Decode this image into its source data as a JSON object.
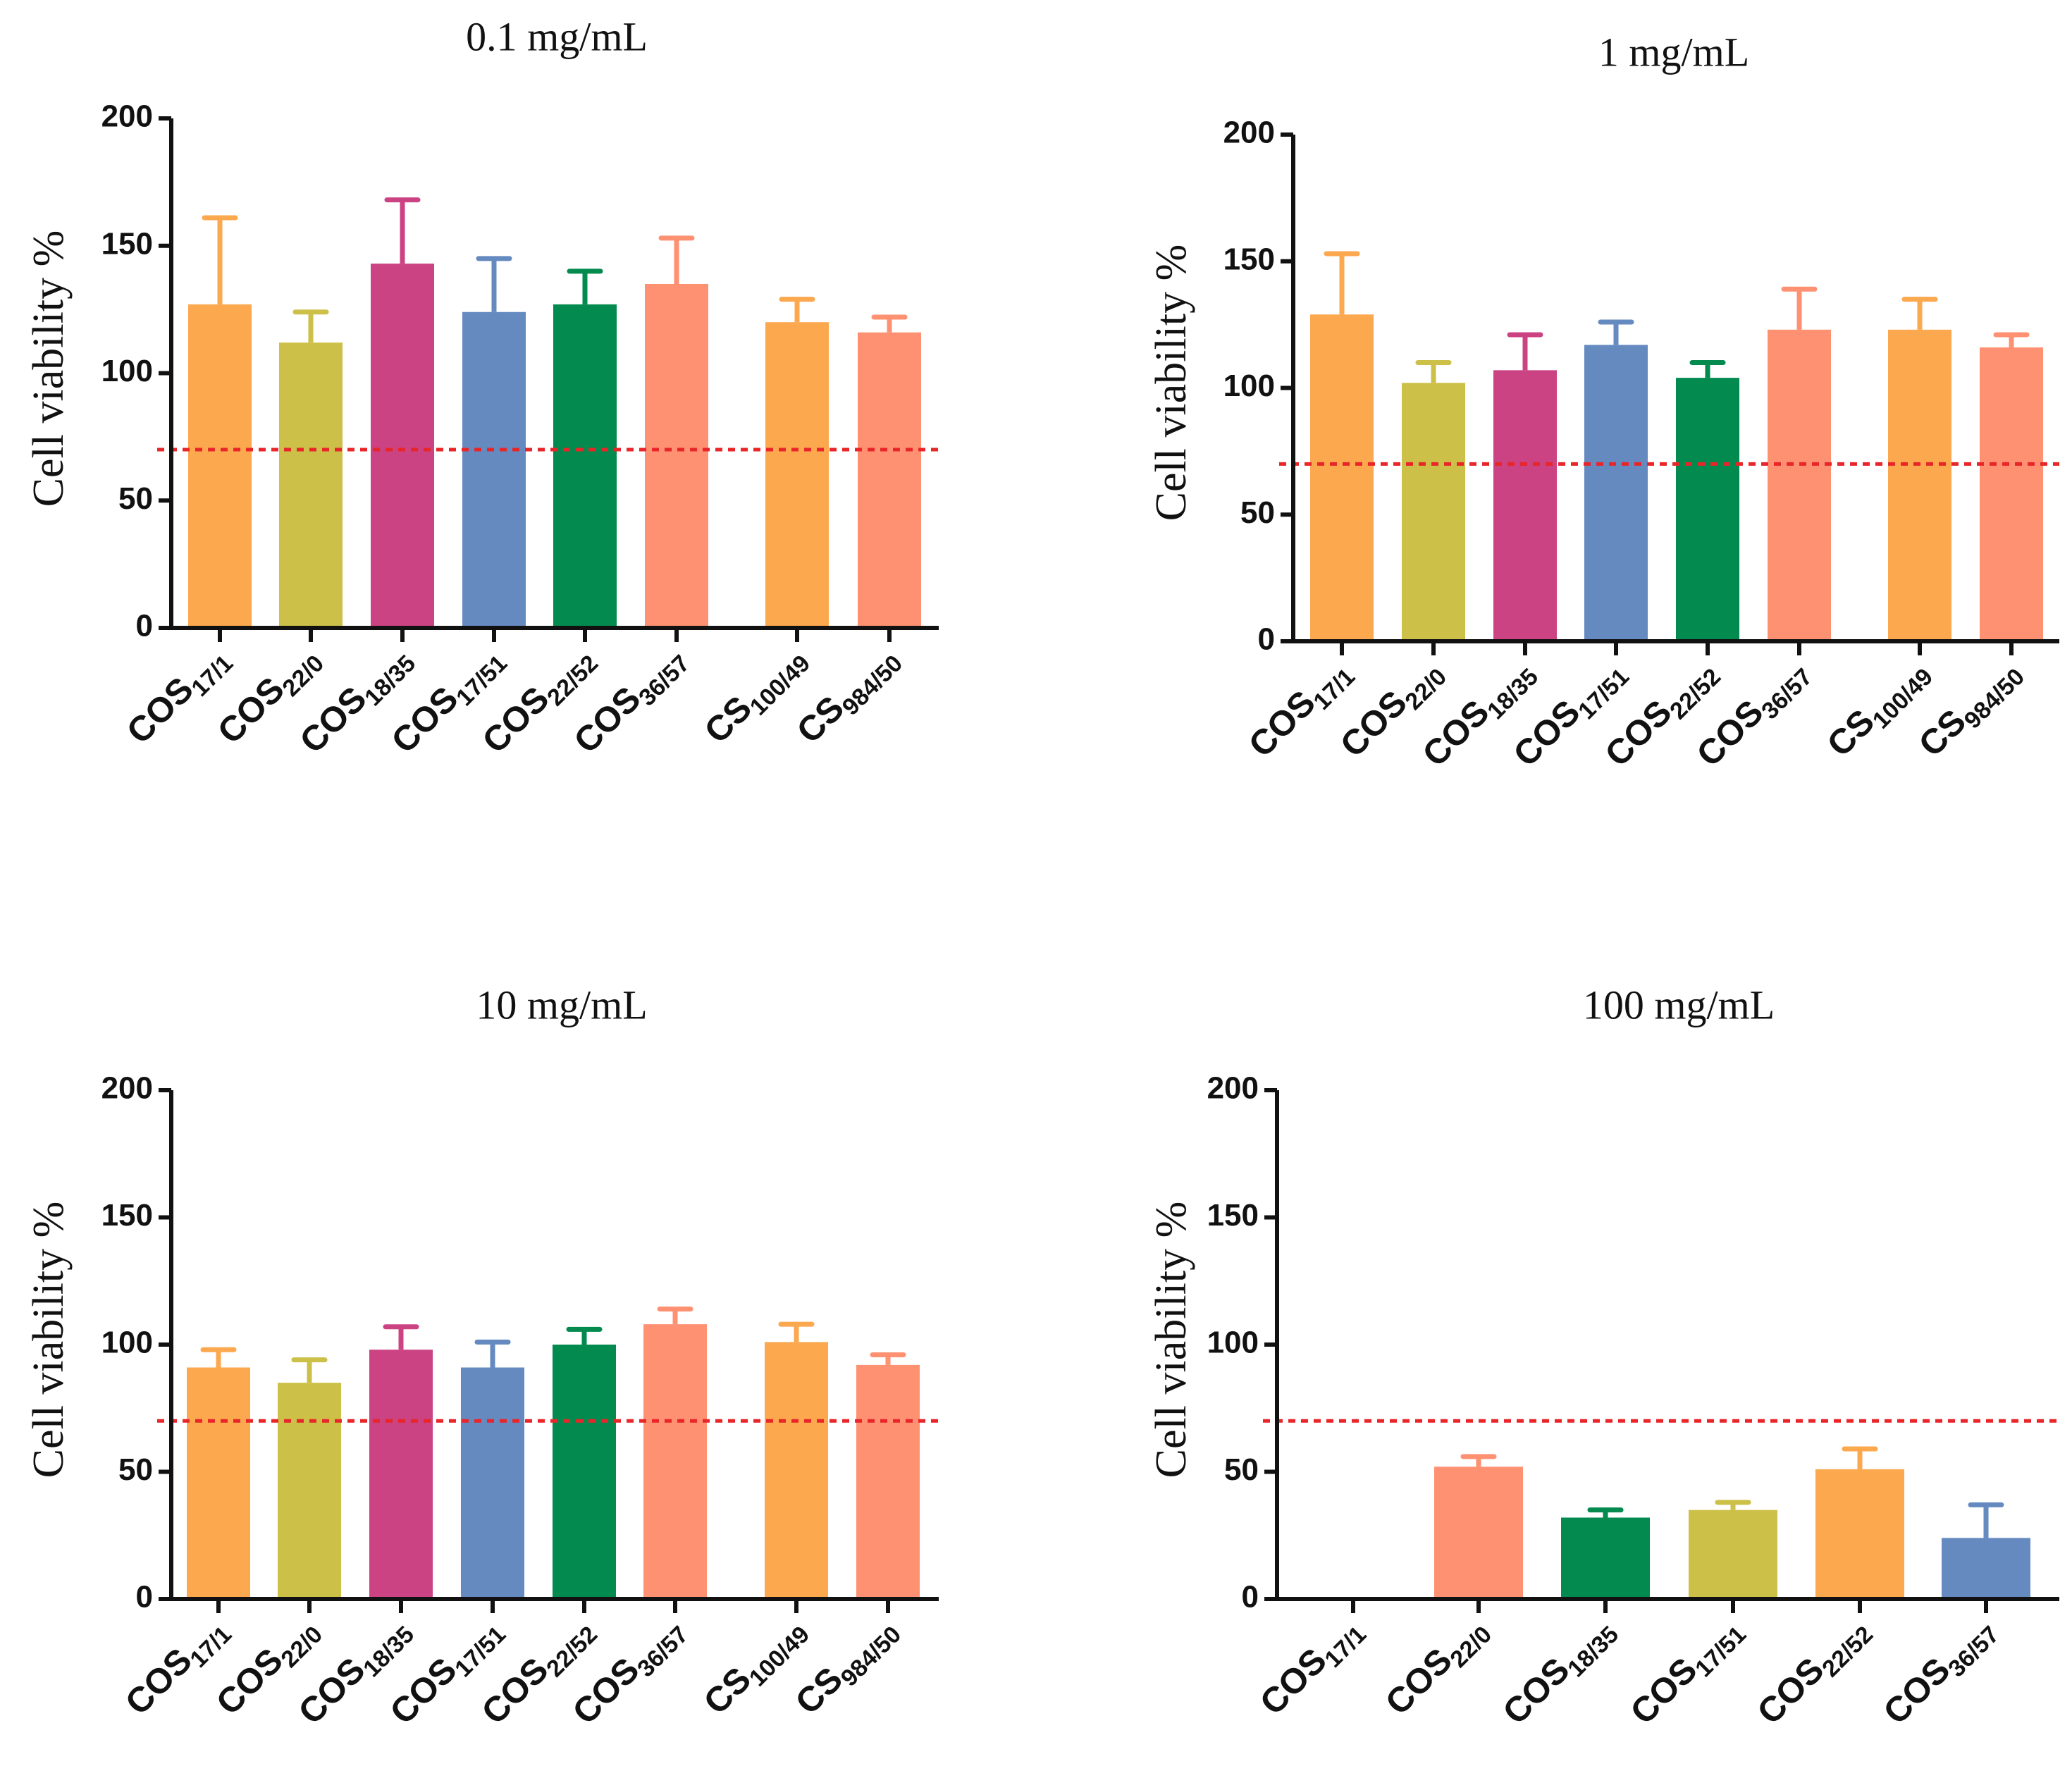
{
  "figure": {
    "threshold_color": "#e8262a",
    "axis_color": "#111111",
    "colors": {
      "orange": "#fba84f",
      "olive": "#cdc048",
      "magenta": "#cb4383",
      "blue": "#658ac0",
      "green": "#028a4f",
      "salmon": "#ff9173"
    }
  },
  "chart_data": [
    {
      "type": "bar",
      "title": "0.1 mg/mL",
      "xlabel": "",
      "ylabel": "Cell viability %",
      "ylim": [
        0,
        200
      ],
      "yticks": [
        "0",
        "50",
        "100",
        "150",
        "200"
      ],
      "threshold": 70,
      "categories": [
        {
          "main": "COS",
          "sub": "17/1"
        },
        {
          "main": "COS",
          "sub": "22/0"
        },
        {
          "main": "COS",
          "sub": "18/35"
        },
        {
          "main": "COS",
          "sub": "17/51"
        },
        {
          "main": "COS",
          "sub": "22/52"
        },
        {
          "main": "COS",
          "sub": "36/57"
        },
        {
          "main": "CS",
          "sub": "100/49"
        },
        {
          "main": "CS",
          "sub": "984/50"
        }
      ],
      "values": [
        127,
        112,
        143,
        124,
        127,
        135,
        120,
        116
      ],
      "errors": [
        34,
        12,
        25,
        21,
        13,
        18,
        9,
        6
      ],
      "colors": [
        "orange",
        "olive",
        "magenta",
        "blue",
        "green",
        "salmon",
        "orange",
        "salmon"
      ]
    },
    {
      "type": "bar",
      "title": "1 mg/mL",
      "xlabel": "",
      "ylabel": "Cell viability %",
      "ylim": [
        0,
        200
      ],
      "yticks": [
        "0",
        "50",
        "100",
        "150",
        "200"
      ],
      "threshold": 70,
      "categories": [
        {
          "main": "COS",
          "sub": "17/1"
        },
        {
          "main": "COS",
          "sub": "22/0"
        },
        {
          "main": "COS",
          "sub": "18/35"
        },
        {
          "main": "COS",
          "sub": "17/51"
        },
        {
          "main": "COS",
          "sub": "22/52"
        },
        {
          "main": "COS",
          "sub": "36/57"
        },
        {
          "main": "CS",
          "sub": "100/49"
        },
        {
          "main": "CS",
          "sub": "984/50"
        }
      ],
      "values": [
        129,
        102,
        107,
        117,
        104,
        123,
        123,
        116
      ],
      "errors": [
        24,
        8,
        14,
        9,
        6,
        16,
        12,
        5
      ],
      "colors": [
        "orange",
        "olive",
        "magenta",
        "blue",
        "green",
        "salmon",
        "orange",
        "salmon"
      ]
    },
    {
      "type": "bar",
      "title": "10 mg/mL",
      "xlabel": "",
      "ylabel": "Cell viability %",
      "ylim": [
        0,
        200
      ],
      "yticks": [
        "0",
        "50",
        "100",
        "150",
        "200"
      ],
      "threshold": 70,
      "categories": [
        {
          "main": "COS",
          "sub": "17/1"
        },
        {
          "main": "COS",
          "sub": "22/0"
        },
        {
          "main": "COS",
          "sub": "18/35"
        },
        {
          "main": "COS",
          "sub": "17/51"
        },
        {
          "main": "COS",
          "sub": "22/52"
        },
        {
          "main": "COS",
          "sub": "36/57"
        },
        {
          "main": "CS",
          "sub": "100/49"
        },
        {
          "main": "CS",
          "sub": "984/50"
        }
      ],
      "values": [
        91,
        85,
        98,
        91,
        100,
        108,
        101,
        92
      ],
      "errors": [
        7,
        9,
        9,
        10,
        6,
        6,
        7,
        4
      ],
      "colors": [
        "orange",
        "olive",
        "magenta",
        "blue",
        "green",
        "salmon",
        "orange",
        "salmon"
      ]
    },
    {
      "type": "bar",
      "title": "100 mg/mL",
      "xlabel": "",
      "ylabel": "Cell viability %",
      "ylim": [
        0,
        200
      ],
      "yticks": [
        "0",
        "50",
        "100",
        "150",
        "200"
      ],
      "threshold": 70,
      "categories": [
        {
          "main": "COS",
          "sub": "17/1"
        },
        {
          "main": "COS",
          "sub": "22/0"
        },
        {
          "main": "COS",
          "sub": "18/35"
        },
        {
          "main": "COS",
          "sub": "17/51"
        },
        {
          "main": "COS",
          "sub": "22/52"
        },
        {
          "main": "COS",
          "sub": "36/57"
        }
      ],
      "values": [
        0,
        52,
        32,
        35,
        51,
        24
      ],
      "errors": [
        0,
        4,
        3,
        3,
        8,
        13
      ],
      "colors": [
        "orange",
        "salmon",
        "green",
        "olive",
        "orange",
        "blue"
      ]
    }
  ]
}
